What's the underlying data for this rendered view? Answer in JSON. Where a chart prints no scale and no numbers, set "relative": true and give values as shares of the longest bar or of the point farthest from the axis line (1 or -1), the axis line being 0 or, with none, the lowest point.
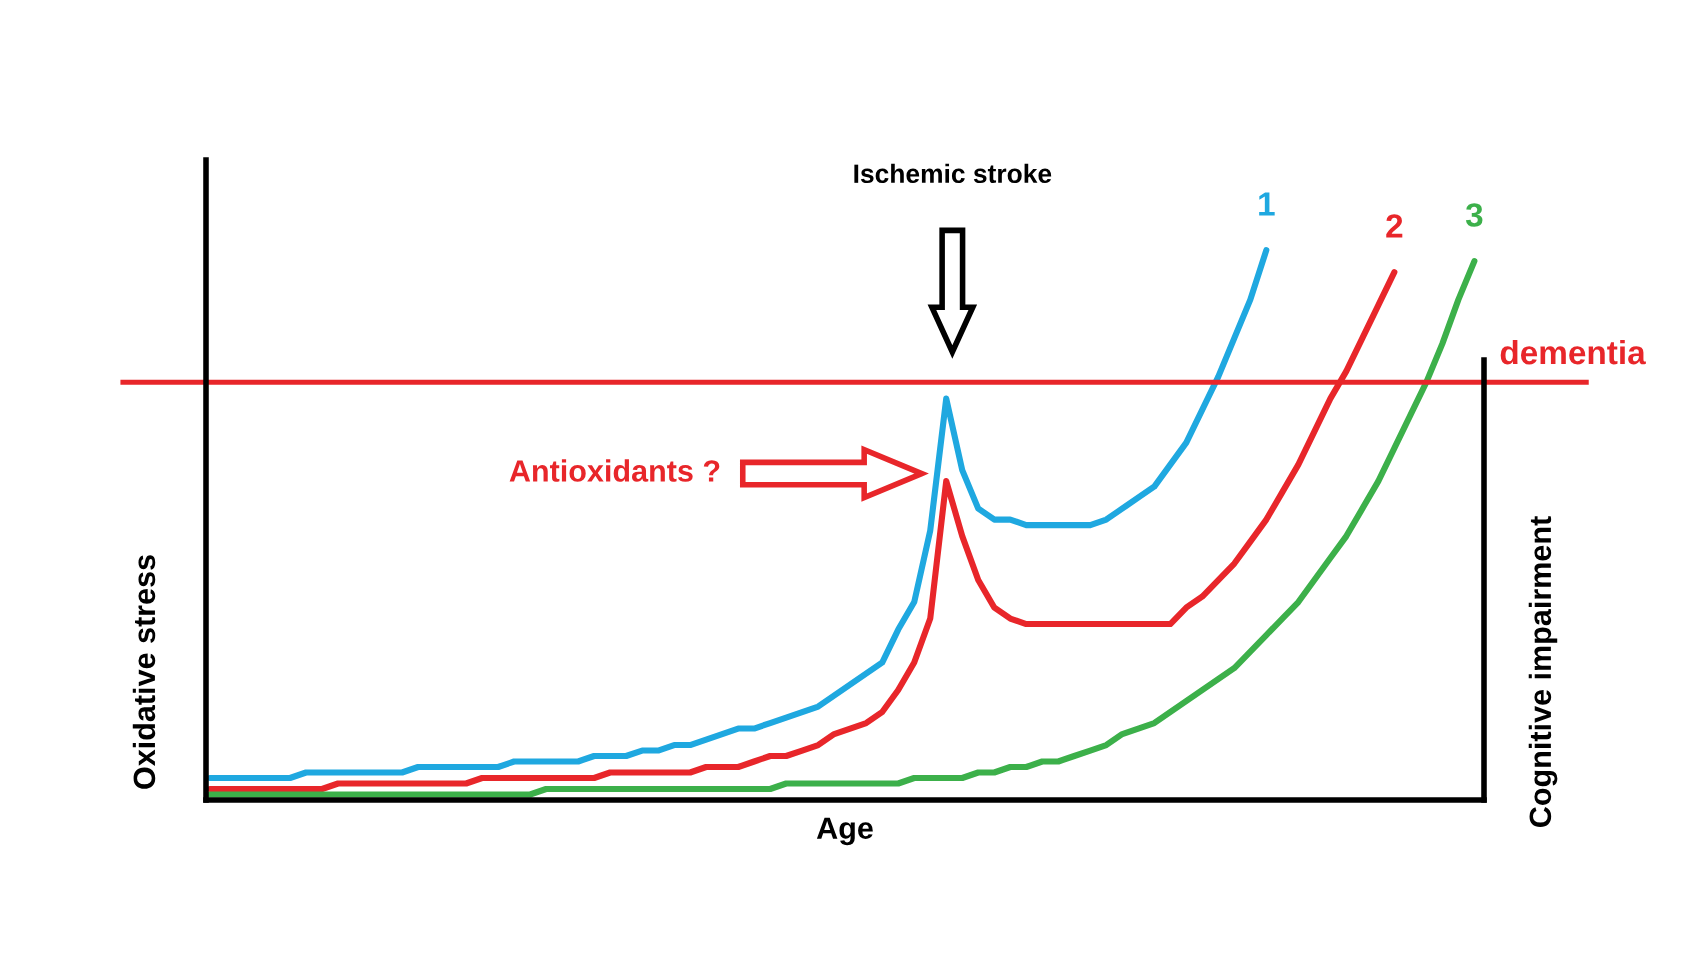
{
  "chart_data": {
    "type": "line",
    "relative": true,
    "xlabel": "Age",
    "ylabel": "Oxidative stress",
    "y2label": "Cognitive impairment",
    "annotations": [
      "Ischemic stroke",
      "Antioxidants ?"
    ],
    "ref_lines": [
      {
        "axis": "y",
        "value": 0.76,
        "label": "dementia",
        "color": "#e8262a"
      }
    ],
    "categories": [
      null,
      null,
      null,
      null,
      null,
      null,
      null,
      null,
      null,
      null,
      null,
      null,
      null,
      null,
      null,
      null,
      null,
      null,
      null,
      null,
      null,
      null,
      null,
      null,
      null,
      null,
      null,
      null,
      null,
      null,
      null,
      null,
      null,
      null,
      null,
      null,
      null,
      null,
      null,
      null,
      null,
      null,
      null,
      null,
      null,
      null,
      null,
      null,
      null,
      null,
      null,
      null,
      null,
      null,
      null,
      null,
      null,
      null,
      null,
      null,
      null,
      null,
      null,
      null,
      null,
      null,
      null,
      null,
      null,
      null,
      null,
      null,
      null,
      null,
      null,
      null,
      null,
      null,
      null,
      null
    ],
    "series": [
      {
        "name": "1",
        "color": "#1fa8e0",
        "values": [
          0.04,
          0.04,
          0.04,
          0.04,
          0.04,
          0.04,
          0.05,
          0.05,
          0.05,
          0.05,
          0.05,
          0.05,
          0.05,
          0.06,
          0.06,
          0.06,
          0.06,
          0.06,
          0.06,
          0.07,
          0.07,
          0.07,
          0.07,
          0.07,
          0.08,
          0.08,
          0.08,
          0.09,
          0.09,
          0.1,
          0.1,
          0.11,
          0.12,
          0.13,
          0.13,
          0.14,
          0.15,
          0.16,
          0.17,
          0.19,
          0.21,
          0.23,
          0.25,
          0.31,
          0.36,
          0.49,
          0.73,
          0.6,
          0.53,
          0.51,
          0.51,
          0.5,
          0.5,
          0.5,
          0.5,
          0.5,
          0.51,
          0.53,
          0.55,
          0.57,
          0.61,
          0.65,
          0.71,
          0.77,
          0.84,
          0.91,
          1.0,
          null,
          null,
          null,
          null,
          null,
          null,
          null,
          null,
          null,
          null,
          null,
          null,
          null
        ]
      },
      {
        "name": "2",
        "color": "#e8262a",
        "values": [
          0.02,
          0.02,
          0.02,
          0.02,
          0.02,
          0.02,
          0.02,
          0.02,
          0.03,
          0.03,
          0.03,
          0.03,
          0.03,
          0.03,
          0.03,
          0.03,
          0.03,
          0.04,
          0.04,
          0.04,
          0.04,
          0.04,
          0.04,
          0.04,
          0.04,
          0.05,
          0.05,
          0.05,
          0.05,
          0.05,
          0.05,
          0.06,
          0.06,
          0.06,
          0.07,
          0.08,
          0.08,
          0.09,
          0.1,
          0.12,
          0.13,
          0.14,
          0.16,
          0.2,
          0.25,
          0.33,
          0.58,
          0.48,
          0.4,
          0.35,
          0.33,
          0.32,
          0.32,
          0.32,
          0.32,
          0.32,
          0.32,
          0.32,
          0.32,
          0.32,
          0.32,
          0.35,
          0.37,
          0.4,
          0.43,
          0.47,
          0.51,
          0.56,
          0.61,
          0.67,
          0.73,
          0.78,
          0.84,
          0.9,
          0.96,
          null,
          null,
          null,
          null,
          null
        ]
      },
      {
        "name": "3",
        "color": "#3cb04a",
        "values": [
          0.01,
          0.01,
          0.01,
          0.01,
          0.01,
          0.01,
          0.01,
          0.01,
          0.01,
          0.01,
          0.01,
          0.01,
          0.01,
          0.01,
          0.01,
          0.01,
          0.01,
          0.01,
          0.01,
          0.01,
          0.01,
          0.02,
          0.02,
          0.02,
          0.02,
          0.02,
          0.02,
          0.02,
          0.02,
          0.02,
          0.02,
          0.02,
          0.02,
          0.02,
          0.02,
          0.02,
          0.03,
          0.03,
          0.03,
          0.03,
          0.03,
          0.03,
          0.03,
          0.03,
          0.04,
          0.04,
          0.04,
          0.04,
          0.05,
          0.05,
          0.06,
          0.06,
          0.07,
          0.07,
          0.08,
          0.09,
          0.1,
          0.12,
          0.13,
          0.14,
          0.16,
          0.18,
          0.2,
          0.22,
          0.24,
          0.27,
          0.3,
          0.33,
          0.36,
          0.4,
          0.44,
          0.48,
          0.53,
          0.58,
          0.64,
          0.7,
          0.76,
          0.83,
          0.91,
          0.98
        ]
      }
    ]
  }
}
